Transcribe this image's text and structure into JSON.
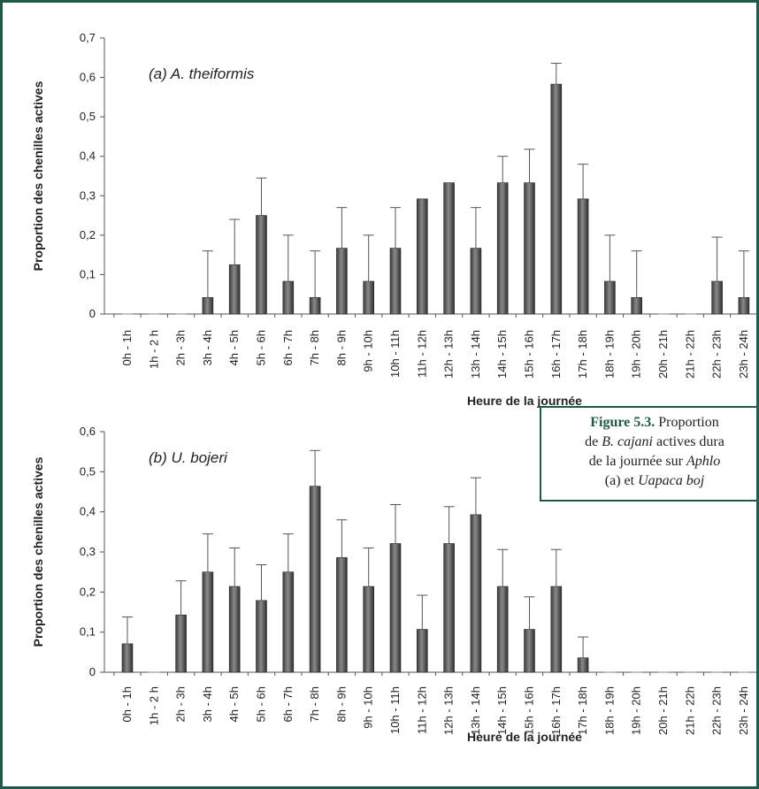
{
  "caption": {
    "label": "Figure 5.3.",
    "line1": " Proportion",
    "line2a": "de ",
    "line2i": "B. cajani",
    "line2b": " actives dura",
    "line3a": "de la journée sur ",
    "line3i": "Aphlo",
    "line4a": "(a) et ",
    "line4i": "Uapaca boj"
  },
  "chart_data": [
    {
      "type": "bar",
      "panel_label": "(a) A. theiformis",
      "xlabel": "Heure de la journée",
      "ylabel": "Proportion des chenilles actives",
      "ylim": [
        0,
        0.7
      ],
      "yticks": [
        "0",
        "0,1",
        "0,2",
        "0,3",
        "0,4",
        "0,5",
        "0,6",
        "0,7"
      ],
      "categories": [
        "0h - 1h",
        "1h - 2 h",
        "2h - 3h",
        "3h - 4h",
        "4h - 5h",
        "5h - 6h",
        "6h - 7h",
        "7h - 8h",
        "8h - 9h",
        "9h - 10h",
        "10h - 11h",
        "11h - 12h",
        "12h - 13h",
        "13h - 14h",
        "14h - 15h",
        "15h - 16h",
        "16h - 17h",
        "17h - 18h",
        "18h - 19h",
        "19h - 20h",
        "20h - 21h",
        "21h - 22h",
        "22h - 23h",
        "23h - 24h"
      ],
      "values": [
        0,
        0,
        0,
        0.042,
        0.125,
        0.25,
        0.083,
        0.042,
        0.167,
        0.083,
        0.167,
        0.292,
        0.333,
        0.167,
        0.333,
        0.333,
        0.583,
        0.292,
        0.083,
        0.042,
        0,
        0,
        0.083,
        0.042
      ],
      "error_upper": [
        0,
        0,
        0,
        0.16,
        0.24,
        0.345,
        0.2,
        0.16,
        0.27,
        0.2,
        0.27,
        0.292,
        0.333,
        0.27,
        0.4,
        0.418,
        0.636,
        0.38,
        0.2,
        0.16,
        0,
        0,
        0.195,
        0.16
      ],
      "grid": false
    },
    {
      "type": "bar",
      "panel_label": "(b) U. bojeri",
      "xlabel": "Heure de la journée",
      "ylabel": "Proportion des chenilles actives",
      "ylim": [
        0,
        0.6
      ],
      "yticks": [
        "0",
        "0,1",
        "0,2",
        "0,3",
        "0,4",
        "0,5",
        "0,6"
      ],
      "categories": [
        "0h - 1h",
        "1h - 2 h",
        "2h - 3h",
        "3h - 4h",
        "4h - 5h",
        "5h - 6h",
        "6h - 7h",
        "7h - 8h",
        "8h - 9h",
        "9h - 10h",
        "10h - 11h",
        "11h - 12h",
        "12h - 13h",
        "13h - 14h",
        "14h - 15h",
        "15h - 16h",
        "16h - 17h",
        "17h - 18h",
        "18h - 19h",
        "19h - 20h",
        "20h - 21h",
        "21h - 22h",
        "22h - 23h",
        "23h - 24h"
      ],
      "values": [
        0.071,
        0,
        0.143,
        0.25,
        0.214,
        0.179,
        0.25,
        0.464,
        0.286,
        0.214,
        0.321,
        0.107,
        0.321,
        0.393,
        0.214,
        0.107,
        0.214,
        0.036,
        0,
        0,
        0,
        0,
        0,
        0
      ],
      "error_upper": [
        0.138,
        0,
        0.228,
        0.345,
        0.31,
        0.268,
        0.345,
        0.553,
        0.38,
        0.31,
        0.418,
        0.192,
        0.413,
        0.485,
        0.306,
        0.188,
        0.306,
        0.088,
        0,
        0,
        0,
        0,
        0,
        0
      ],
      "grid": false
    }
  ]
}
